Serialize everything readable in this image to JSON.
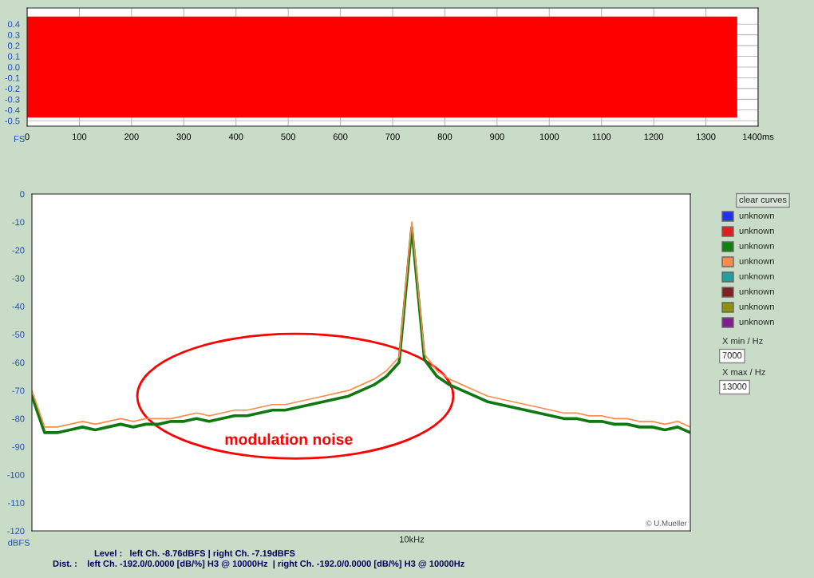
{
  "chart_data": [
    {
      "type": "area",
      "ylabel": "FS",
      "xlim": [
        0,
        1400
      ],
      "ylim": [
        -0.55,
        0.55
      ],
      "xticks": [
        0,
        100,
        200,
        300,
        400,
        500,
        600,
        700,
        800,
        900,
        1000,
        1100,
        1200,
        1300,
        {
          "value": 1400,
          "label": "1400ms"
        }
      ],
      "yticks": [
        0.4,
        0.3,
        0.2,
        0.1,
        {
          "value": 0,
          "label": "0.0"
        },
        -0.1,
        -0.2,
        -0.3,
        -0.4,
        -0.5
      ],
      "grid": true,
      "x": [
        0,
        1360
      ],
      "series": [
        {
          "color": "#ff0000",
          "values": [
            0.47,
            0.47
          ]
        },
        {
          "color": "#ff0000",
          "values": [
            -0.47,
            -0.47
          ]
        }
      ]
    },
    {
      "type": "line",
      "ylabel": "dBFS",
      "ylim": [
        -120,
        0
      ],
      "yticks": [
        0,
        -10,
        -20,
        -30,
        -40,
        -50,
        -60,
        -70,
        -80,
        -90,
        -100,
        -110,
        -120
      ],
      "categories": [
        null,
        null,
        null,
        null,
        null,
        null,
        null,
        null,
        null,
        null,
        null,
        null,
        null,
        null,
        null,
        null,
        null,
        null,
        null,
        null,
        null,
        null,
        null,
        null,
        null,
        null,
        null,
        null,
        null,
        null,
        null,
        null,
        null,
        null,
        null,
        null,
        null,
        null,
        null,
        null,
        null,
        null,
        null,
        null,
        null,
        null,
        null,
        null,
        null,
        null,
        null,
        null,
        null
      ],
      "series": [
        {
          "color": "#107810",
          "values": [
            -72,
            -85,
            -85,
            -84,
            -83,
            -84,
            -83,
            -82,
            -83,
            -82,
            -82,
            -81,
            -81,
            -80,
            -81,
            -80,
            -79,
            -79,
            -78,
            -77,
            -77,
            -76,
            -75,
            -74,
            -73,
            -72,
            -70,
            -68,
            -65,
            -60,
            -12,
            -59,
            -65,
            -68,
            -70,
            -72,
            -74,
            -75,
            -76,
            -77,
            -78,
            -79,
            -80,
            -80,
            -81,
            -81,
            -82,
            -82,
            -83,
            -83,
            -84,
            -83,
            -85
          ]
        },
        {
          "color": "#ff8c4a",
          "values": [
            -70,
            -83,
            -83,
            -82,
            -81,
            -82,
            -81,
            -80,
            -81,
            -80,
            -80,
            -80,
            -79,
            -78,
            -79,
            -78,
            -77,
            -77,
            -76,
            -75,
            -75,
            -74,
            -73,
            -72,
            -71,
            -70,
            -68,
            -66,
            -63,
            -58,
            -10,
            -57,
            -63,
            -66,
            -68,
            -70,
            -72,
            -73,
            -74,
            -75,
            -76,
            -77,
            -78,
            -78,
            -79,
            -79,
            -80,
            -80,
            -81,
            -81,
            -82,
            -81,
            -83
          ]
        }
      ],
      "annotations": [
        "modulation noise",
        "10kHz",
        "© U.Mueller",
        "Level :   left Ch. -8.76dBFS | right Ch. -7.19dBFS",
        "Dist. :    left Ch. -192.0/0.0000 [dB/%] H3 @ 10000Hz  | right Ch. -192.0/0.0000 [dB/%] H3 @ 10000Hz",
        "clear curves",
        "unknown",
        "unknown",
        "unknown",
        "unknown",
        "unknown",
        "unknown",
        "unknown",
        "unknown",
        "X min / Hz",
        "7000",
        "X max / Hz",
        "13000"
      ]
    }
  ]
}
